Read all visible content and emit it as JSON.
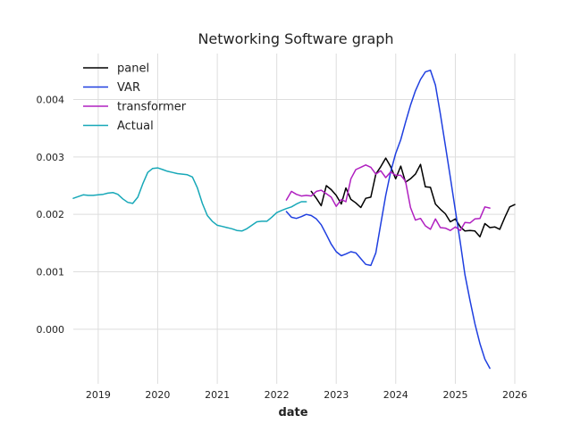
{
  "chart_data": {
    "type": "line",
    "title": "Networking Software graph",
    "xlabel": "date",
    "ylabel": "",
    "x_axis_kind": "date",
    "xlim": [
      "2018-08-01",
      "2026-01-01"
    ],
    "ylim": [
      -0.00095,
      0.0048
    ],
    "grid": true,
    "legend_position": "top-left",
    "x_ticks": [
      {
        "date": "2019-01-01",
        "label": "2019"
      },
      {
        "date": "2020-01-01",
        "label": "2020"
      },
      {
        "date": "2021-01-01",
        "label": "2021"
      },
      {
        "date": "2022-01-01",
        "label": "2022"
      },
      {
        "date": "2023-01-01",
        "label": "2023"
      },
      {
        "date": "2024-01-01",
        "label": "2024"
      },
      {
        "date": "2025-01-01",
        "label": "2025"
      },
      {
        "date": "2026-01-01",
        "label": "2026"
      }
    ],
    "y_ticks": [
      {
        "value": 0.0,
        "label": "0.000"
      },
      {
        "value": 0.001,
        "label": "0.001"
      },
      {
        "value": 0.002,
        "label": "0.002"
      },
      {
        "value": 0.003,
        "label": "0.003"
      },
      {
        "value": 0.004,
        "label": "0.004"
      }
    ],
    "series": [
      {
        "name": "panel",
        "color": "#000000",
        "points": [
          [
            "2022-08-01",
            0.0024
          ],
          [
            "2022-09-01",
            0.00228
          ],
          [
            "2022-10-01",
            0.00215
          ],
          [
            "2022-11-01",
            0.0025
          ],
          [
            "2022-12-01",
            0.00243
          ],
          [
            "2023-01-01",
            0.00233
          ],
          [
            "2023-02-01",
            0.00218
          ],
          [
            "2023-03-01",
            0.00246
          ],
          [
            "2023-04-01",
            0.00226
          ],
          [
            "2023-05-01",
            0.0022
          ],
          [
            "2023-06-01",
            0.00212
          ],
          [
            "2023-07-01",
            0.00228
          ],
          [
            "2023-08-01",
            0.0023
          ],
          [
            "2023-09-01",
            0.0027
          ],
          [
            "2023-10-01",
            0.00283
          ],
          [
            "2023-11-01",
            0.00298
          ],
          [
            "2023-12-01",
            0.00283
          ],
          [
            "2024-01-01",
            0.00262
          ],
          [
            "2024-02-01",
            0.00284
          ],
          [
            "2024-03-01",
            0.00256
          ],
          [
            "2024-04-01",
            0.00262
          ],
          [
            "2024-05-01",
            0.0027
          ],
          [
            "2024-06-01",
            0.00287
          ],
          [
            "2024-07-01",
            0.00248
          ],
          [
            "2024-08-01",
            0.00247
          ],
          [
            "2024-09-01",
            0.00218
          ],
          [
            "2024-10-01",
            0.00209
          ],
          [
            "2024-11-01",
            0.00201
          ],
          [
            "2024-12-01",
            0.00187
          ],
          [
            "2025-01-01",
            0.00192
          ],
          [
            "2025-02-01",
            0.00178
          ],
          [
            "2025-03-01",
            0.00171
          ],
          [
            "2025-04-01",
            0.00172
          ],
          [
            "2025-05-01",
            0.00171
          ],
          [
            "2025-06-01",
            0.00161
          ],
          [
            "2025-07-01",
            0.00184
          ],
          [
            "2025-08-01",
            0.00177
          ],
          [
            "2025-09-01",
            0.00178
          ],
          [
            "2025-10-01",
            0.00174
          ],
          [
            "2025-11-01",
            0.00195
          ],
          [
            "2025-12-01",
            0.00213
          ],
          [
            "2026-01-01",
            0.00217
          ]
        ]
      },
      {
        "name": "VAR",
        "color": "#1f3fe0",
        "points": [
          [
            "2022-03-01",
            0.00205
          ],
          [
            "2022-04-01",
            0.00195
          ],
          [
            "2022-05-01",
            0.00193
          ],
          [
            "2022-06-01",
            0.00196
          ],
          [
            "2022-07-01",
            0.002
          ],
          [
            "2022-08-01",
            0.00198
          ],
          [
            "2022-09-01",
            0.00192
          ],
          [
            "2022-10-01",
            0.00182
          ],
          [
            "2022-11-01",
            0.00165
          ],
          [
            "2022-12-01",
            0.00148
          ],
          [
            "2023-01-01",
            0.00135
          ],
          [
            "2023-02-01",
            0.00128
          ],
          [
            "2023-03-01",
            0.00131
          ],
          [
            "2023-04-01",
            0.00135
          ],
          [
            "2023-05-01",
            0.00133
          ],
          [
            "2023-06-01",
            0.00123
          ],
          [
            "2023-07-01",
            0.00113
          ],
          [
            "2023-08-01",
            0.00111
          ],
          [
            "2023-09-01",
            0.00133
          ],
          [
            "2023-10-01",
            0.00183
          ],
          [
            "2023-11-01",
            0.00233
          ],
          [
            "2023-12-01",
            0.00274
          ],
          [
            "2024-01-01",
            0.00306
          ],
          [
            "2024-02-01",
            0.0033
          ],
          [
            "2024-03-01",
            0.0036
          ],
          [
            "2024-04-01",
            0.0039
          ],
          [
            "2024-05-01",
            0.00415
          ],
          [
            "2024-06-01",
            0.00435
          ],
          [
            "2024-07-01",
            0.00448
          ],
          [
            "2024-08-01",
            0.00451
          ],
          [
            "2024-09-01",
            0.00425
          ],
          [
            "2024-10-01",
            0.00375
          ],
          [
            "2024-11-01",
            0.0032
          ],
          [
            "2024-12-01",
            0.00265
          ],
          [
            "2025-01-01",
            0.00207
          ],
          [
            "2025-02-01",
            0.0015
          ],
          [
            "2025-03-01",
            0.00095
          ],
          [
            "2025-04-01",
            0.0005
          ],
          [
            "2025-05-01",
            0.0001
          ],
          [
            "2025-06-01",
            -0.00025
          ],
          [
            "2025-07-01",
            -0.00052
          ],
          [
            "2025-08-01",
            -0.00068
          ]
        ]
      },
      {
        "name": "transformer",
        "color": "#b020c0",
        "points": [
          [
            "2022-03-01",
            0.00225
          ],
          [
            "2022-04-01",
            0.0024
          ],
          [
            "2022-05-01",
            0.00235
          ],
          [
            "2022-06-01",
            0.00232
          ],
          [
            "2022-07-01",
            0.00233
          ],
          [
            "2022-08-01",
            0.00232
          ],
          [
            "2022-09-01",
            0.0024
          ],
          [
            "2022-10-01",
            0.00242
          ],
          [
            "2022-11-01",
            0.00236
          ],
          [
            "2022-12-01",
            0.0023
          ],
          [
            "2023-01-01",
            0.00214
          ],
          [
            "2023-02-01",
            0.00226
          ],
          [
            "2023-03-01",
            0.00222
          ],
          [
            "2023-04-01",
            0.00262
          ],
          [
            "2023-05-01",
            0.00278
          ],
          [
            "2023-06-01",
            0.00282
          ],
          [
            "2023-07-01",
            0.00286
          ],
          [
            "2023-08-01",
            0.00282
          ],
          [
            "2023-09-01",
            0.0027
          ],
          [
            "2023-10-01",
            0.00276
          ],
          [
            "2023-11-01",
            0.00264
          ],
          [
            "2023-12-01",
            0.00274
          ],
          [
            "2024-01-01",
            0.00268
          ],
          [
            "2024-02-01",
            0.00268
          ],
          [
            "2024-03-01",
            0.00258
          ],
          [
            "2024-04-01",
            0.00212
          ],
          [
            "2024-05-01",
            0.0019
          ],
          [
            "2024-06-01",
            0.00193
          ],
          [
            "2024-07-01",
            0.0018
          ],
          [
            "2024-08-01",
            0.00174
          ],
          [
            "2024-09-01",
            0.00192
          ],
          [
            "2024-10-01",
            0.00177
          ],
          [
            "2024-11-01",
            0.00176
          ],
          [
            "2024-12-01",
            0.00172
          ],
          [
            "2025-01-01",
            0.00178
          ],
          [
            "2025-02-01",
            0.00172
          ],
          [
            "2025-03-01",
            0.00186
          ],
          [
            "2025-04-01",
            0.00185
          ],
          [
            "2025-05-01",
            0.00192
          ],
          [
            "2025-06-01",
            0.00193
          ],
          [
            "2025-07-01",
            0.00213
          ],
          [
            "2025-08-01",
            0.00211
          ]
        ]
      },
      {
        "name": "Actual",
        "color": "#17a8b8",
        "points": [
          [
            "2018-08-01",
            0.00228
          ],
          [
            "2018-09-01",
            0.00231
          ],
          [
            "2018-10-01",
            0.00234
          ],
          [
            "2018-11-01",
            0.00233
          ],
          [
            "2018-12-01",
            0.00233
          ],
          [
            "2019-01-01",
            0.00234
          ],
          [
            "2019-02-01",
            0.00235
          ],
          [
            "2019-03-01",
            0.00237
          ],
          [
            "2019-04-01",
            0.00238
          ],
          [
            "2019-05-01",
            0.00235
          ],
          [
            "2019-06-01",
            0.00227
          ],
          [
            "2019-07-01",
            0.00221
          ],
          [
            "2019-08-01",
            0.00219
          ],
          [
            "2019-09-01",
            0.0023
          ],
          [
            "2019-10-01",
            0.00253
          ],
          [
            "2019-11-01",
            0.00273
          ],
          [
            "2019-12-01",
            0.0028
          ],
          [
            "2020-01-01",
            0.00281
          ],
          [
            "2020-02-01",
            0.00278
          ],
          [
            "2020-03-01",
            0.00275
          ],
          [
            "2020-04-01",
            0.00273
          ],
          [
            "2020-05-01",
            0.00271
          ],
          [
            "2020-06-01",
            0.0027
          ],
          [
            "2020-07-01",
            0.00269
          ],
          [
            "2020-08-01",
            0.00265
          ],
          [
            "2020-09-01",
            0.00246
          ],
          [
            "2020-10-01",
            0.00219
          ],
          [
            "2020-11-01",
            0.00198
          ],
          [
            "2020-12-01",
            0.00188
          ],
          [
            "2021-01-01",
            0.00181
          ],
          [
            "2021-02-01",
            0.00179
          ],
          [
            "2021-03-01",
            0.00177
          ],
          [
            "2021-04-01",
            0.00175
          ],
          [
            "2021-05-01",
            0.00172
          ],
          [
            "2021-06-01",
            0.00171
          ],
          [
            "2021-07-01",
            0.00175
          ],
          [
            "2021-08-01",
            0.00181
          ],
          [
            "2021-09-01",
            0.00187
          ],
          [
            "2021-10-01",
            0.00188
          ],
          [
            "2021-11-01",
            0.00188
          ],
          [
            "2021-12-01",
            0.00195
          ],
          [
            "2022-01-01",
            0.00203
          ],
          [
            "2022-02-01",
            0.00207
          ],
          [
            "2022-03-01",
            0.0021
          ],
          [
            "2022-04-01",
            0.00213
          ],
          [
            "2022-05-01",
            0.00218
          ],
          [
            "2022-06-01",
            0.00222
          ],
          [
            "2022-07-01",
            0.00222
          ]
        ]
      }
    ]
  }
}
